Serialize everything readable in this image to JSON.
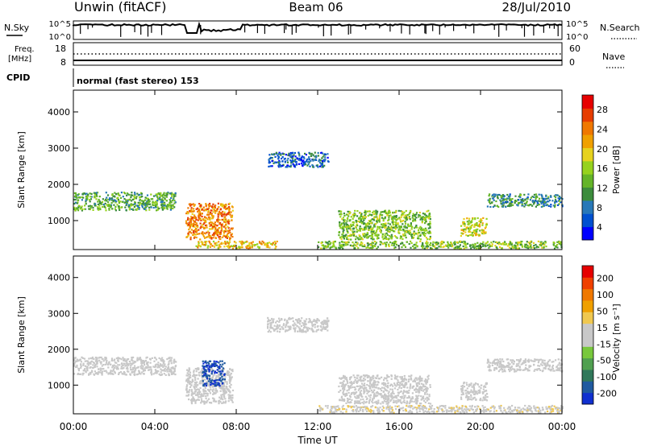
{
  "header": {
    "station": "Unwin (fitACF)",
    "beam": "Beam 06",
    "date": "28/Jul/2010"
  },
  "top_panels": {
    "nsky_label": "N.Sky",
    "nsky_ticks": [
      "10^5",
      "10^0"
    ],
    "nsearch_label": "N.Search",
    "nsearch_ticks": [
      "10^5",
      "10^0"
    ],
    "freq_label_1": "Freq.",
    "freq_label_2": "[MHz]",
    "freq_ticks": [
      "18",
      "8"
    ],
    "nave_label": "Nave",
    "nave_ticks": [
      "60",
      "0"
    ],
    "cpid_label": "CPID",
    "cpid_text": "normal (fast stereo) 153"
  },
  "chart_data": [
    {
      "type": "heatmap",
      "name": "power",
      "ylabel": "Slant Range [km]",
      "yticks": [
        "4000",
        "3000",
        "2000",
        "1000"
      ],
      "ylim": [
        200,
        4600
      ],
      "xlim": [
        0,
        24
      ],
      "colorbar_label": "Power [dB]",
      "colorbar_ticks": [
        "28",
        "24",
        "20",
        "16",
        "12",
        "8",
        "4"
      ],
      "colorbar_colors": [
        "#0000ff",
        "#0050d0",
        "#2878b8",
        "#3c8c3c",
        "#64b428",
        "#96d21e",
        "#e6d21e",
        "#f0a000",
        "#f07800",
        "#e63c00",
        "#e60000"
      ],
      "regions": [
        {
          "t": [
            0,
            5
          ],
          "r": [
            1300,
            1800
          ],
          "level": 12
        },
        {
          "t": [
            5.5,
            7.8
          ],
          "r": [
            500,
            1500
          ],
          "level": 24
        },
        {
          "t": [
            6,
            10
          ],
          "r": [
            250,
            450
          ],
          "level": 20
        },
        {
          "t": [
            9.5,
            12.5
          ],
          "r": [
            2500,
            2900
          ],
          "level": 6
        },
        {
          "t": [
            13,
            17.5
          ],
          "r": [
            500,
            1300
          ],
          "level": 14
        },
        {
          "t": [
            19,
            20.3
          ],
          "r": [
            600,
            1100
          ],
          "level": 18
        },
        {
          "t": [
            20.3,
            24
          ],
          "r": [
            1400,
            1750
          ],
          "level": 10
        },
        {
          "t": [
            12,
            24
          ],
          "r": [
            250,
            450
          ],
          "level": 14
        }
      ]
    },
    {
      "type": "heatmap",
      "name": "velocity",
      "ylabel": "Slant Range [km]",
      "yticks": [
        "4000",
        "3000",
        "2000",
        "1000"
      ],
      "ylim": [
        200,
        4600
      ],
      "xlim": [
        0,
        24
      ],
      "xlabel": "Time UT",
      "xticks": [
        "00:00",
        "04:00",
        "08:00",
        "12:00",
        "16:00",
        "20:00",
        "00:00"
      ],
      "colorbar_label": "Velocity [m s⁻¹]",
      "colorbar_ticks": [
        "200",
        "100",
        "50",
        "15",
        "-15",
        "-50",
        "-100",
        "-200"
      ],
      "colorbar_colors": [
        "#1030d0",
        "#205aa0",
        "#30785a",
        "#50a050",
        "#78c83c",
        "#c8c8c8",
        "#c8c8c8",
        "#f0c850",
        "#f0a000",
        "#f07800",
        "#f04000",
        "#e60000"
      ],
      "regions": [
        {
          "t": [
            0,
            5
          ],
          "r": [
            1300,
            1800
          ],
          "level": 0
        },
        {
          "t": [
            5.5,
            7.8
          ],
          "r": [
            500,
            1500
          ],
          "level": 0
        },
        {
          "t": [
            6.3,
            7.4
          ],
          "r": [
            1000,
            1700
          ],
          "level": -200
        },
        {
          "t": [
            9.5,
            12.5
          ],
          "r": [
            2500,
            2900
          ],
          "level": 0
        },
        {
          "t": [
            13,
            17.5
          ],
          "r": [
            500,
            1300
          ],
          "level": 0
        },
        {
          "t": [
            19,
            20.3
          ],
          "r": [
            600,
            1100
          ],
          "level": 0
        },
        {
          "t": [
            20.3,
            24
          ],
          "r": [
            1400,
            1750
          ],
          "level": 0
        },
        {
          "t": [
            12,
            24
          ],
          "r": [
            250,
            450
          ],
          "level": 30
        }
      ]
    }
  ]
}
